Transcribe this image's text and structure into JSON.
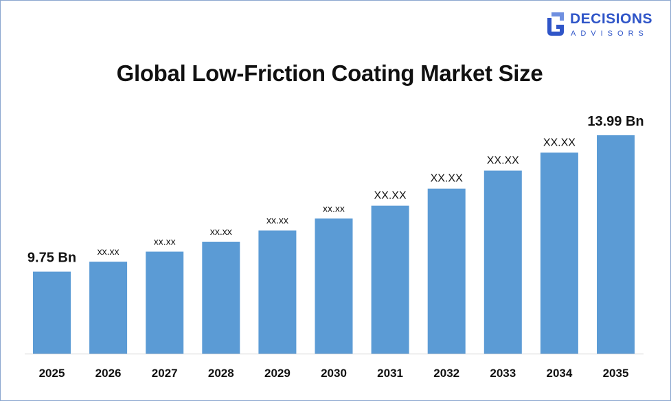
{
  "logo": {
    "brand": "DECISIONS",
    "sub": "ADVISORS",
    "icon": "decisions-advisors-logo-icon",
    "color": "#2f55c8"
  },
  "chart_data": {
    "type": "bar",
    "title": "Global Low-Friction Coating Market Size",
    "xlabel": "",
    "ylabel": "",
    "categories": [
      "2025",
      "2026",
      "2027",
      "2028",
      "2029",
      "2030",
      "2031",
      "2032",
      "2033",
      "2034",
      "2035"
    ],
    "values": [
      9.75,
      10.06,
      10.37,
      10.68,
      11.03,
      11.4,
      11.8,
      12.33,
      12.89,
      13.45,
      13.99
    ],
    "data_labels": [
      "9.75 Bn",
      "xx.xx",
      "xx.xx",
      "xx.xx",
      "xx.xx",
      "xx.xx",
      "XX.XX",
      "XX.XX",
      "XX.XX",
      "XX.XX",
      "13.99 Bn"
    ],
    "bar_color": "#5b9bd5",
    "ylim": [
      7.2,
      14.6
    ],
    "grid": false,
    "legend": "none"
  }
}
